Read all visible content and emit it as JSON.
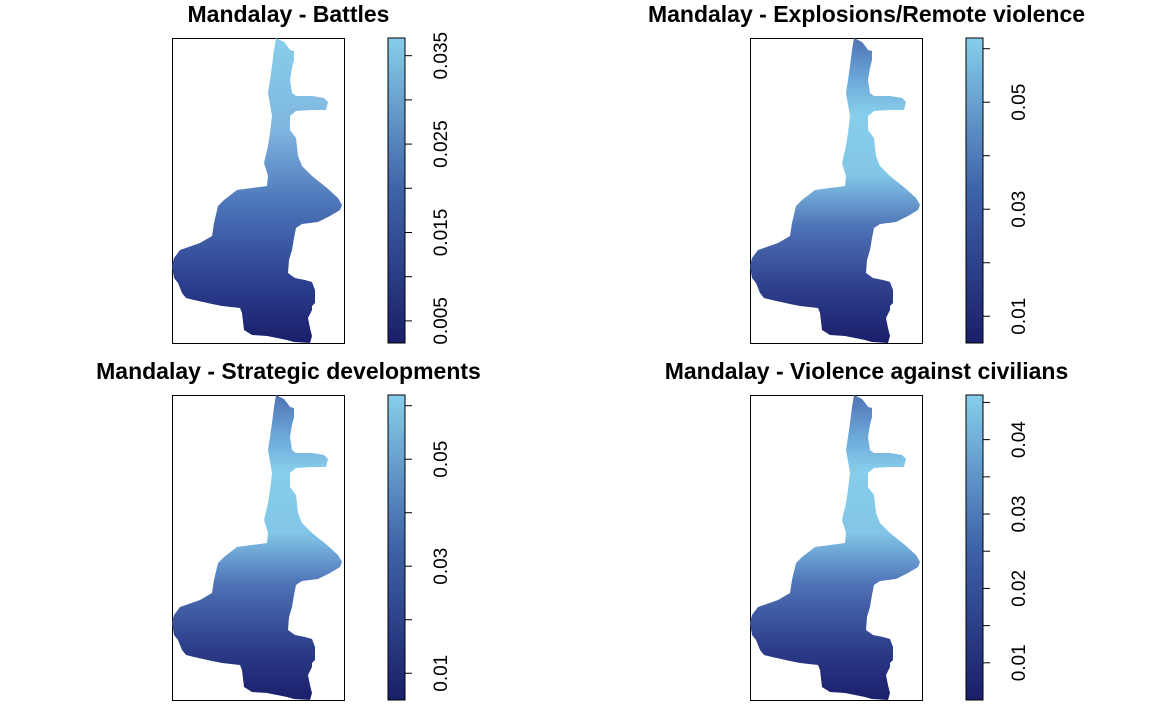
{
  "colors": {
    "low": "#1a1f6a",
    "mid": "#3e63a8",
    "high": "#87ceeb"
  },
  "chart_data": [
    {
      "type": "heatmap",
      "title": "Mandalay -  Battles",
      "legend_range": [
        0.0025,
        0.037
      ],
      "legend_ticks": [
        0.005,
        0.015,
        0.025,
        0.035
      ],
      "legend_minor_ticks": [
        0.01,
        0.02,
        0.03
      ],
      "tick_labels": [
        "0.005",
        "0.015",
        "0.025",
        "0.035"
      ],
      "gradient": "south-low-north-high"
    },
    {
      "type": "heatmap",
      "title": "Mandalay -  Explosions/Remote violence",
      "legend_range": [
        0.005,
        0.062
      ],
      "legend_ticks": [
        0.01,
        0.03,
        0.05
      ],
      "legend_minor_ticks": [
        0.02,
        0.04,
        0.06
      ],
      "tick_labels": [
        "0.01",
        "0.03",
        "0.05"
      ],
      "gradient": "middle-high"
    },
    {
      "type": "heatmap",
      "title": "Mandalay -  Strategic developments",
      "legend_range": [
        0.005,
        0.062
      ],
      "legend_ticks": [
        0.01,
        0.03,
        0.05
      ],
      "legend_minor_ticks": [
        0.02,
        0.04,
        0.06
      ],
      "tick_labels": [
        "0.01",
        "0.03",
        "0.05"
      ],
      "gradient": "middle-high"
    },
    {
      "type": "heatmap",
      "title": "Mandalay -  Violence against civilians",
      "legend_range": [
        0.005,
        0.046
      ],
      "legend_ticks": [
        0.01,
        0.02,
        0.03,
        0.04
      ],
      "legend_minor_ticks": [
        0.015,
        0.025,
        0.035,
        0.045
      ],
      "tick_labels": [
        "0.01",
        "0.02",
        "0.03",
        "0.04"
      ],
      "gradient": "middle-high"
    }
  ]
}
